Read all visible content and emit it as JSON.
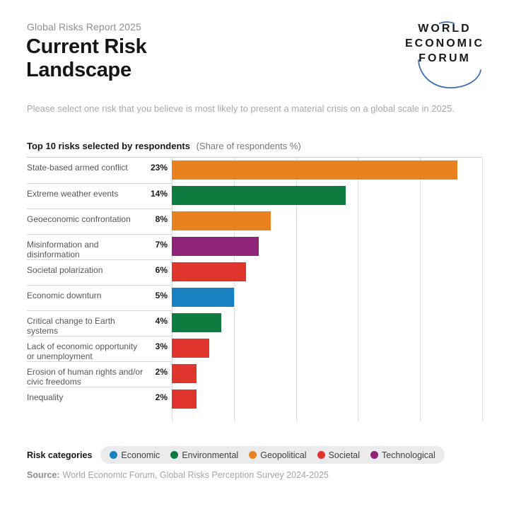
{
  "header": {
    "eyebrow": "Global Risks Report 2025",
    "title_line1": "Current Risk",
    "title_line2": "Landscape"
  },
  "logo": {
    "line1": "WORLD",
    "line2": "ECONOMIC",
    "line3": "FORUM",
    "arc_color": "#3e6fb6"
  },
  "question": "Please select one risk that you believe is most likely to present a material crisis on a global scale in 2025.",
  "chart_heading": {
    "title": "Top 10 risks selected by respondents",
    "note": "(Share of respondents %)"
  },
  "chart_data": {
    "type": "bar",
    "orientation": "horizontal",
    "title": "Top 10 risks selected by respondents",
    "value_unit": "Share of respondents %",
    "xlim": [
      0,
      25
    ],
    "gridline_step": 5,
    "grid": true,
    "legend_position": "bottom",
    "categories": [
      "State-based armed conflict",
      "Extreme weather events",
      "Geoeconomic confrontation",
      "Misinformation and disinformation",
      "Societal polarization",
      "Economic downturn",
      "Critical change to Earth systems",
      "Lack of economic opportunity or unemployment",
      "Erosion of human rights and/or civic freedoms",
      "Inequality"
    ],
    "values": [
      23,
      14,
      8,
      7,
      6,
      5,
      4,
      3,
      2,
      2
    ],
    "value_labels": [
      "23%",
      "14%",
      "8%",
      "7%",
      "6%",
      "5%",
      "4%",
      "3%",
      "2%",
      "2%"
    ],
    "risk_category_per_bar": [
      "Geopolitical",
      "Environmental",
      "Geopolitical",
      "Technological",
      "Societal",
      "Economic",
      "Environmental",
      "Societal",
      "Societal",
      "Societal"
    ],
    "category_colors": {
      "Economic": "#1781c1",
      "Environmental": "#0e7c3f",
      "Geopolitical": "#e8821e",
      "Societal": "#e0352c",
      "Technological": "#8e2377"
    }
  },
  "legend": {
    "label": "Risk categories",
    "items": [
      {
        "name": "Economic",
        "color": "#1781c1"
      },
      {
        "name": "Environmental",
        "color": "#0e7c3f"
      },
      {
        "name": "Geopolitical",
        "color": "#e8821e"
      },
      {
        "name": "Societal",
        "color": "#e0352c"
      },
      {
        "name": "Technological",
        "color": "#8e2377"
      }
    ]
  },
  "source": {
    "label": "Source:",
    "text": "World Economic Forum, Global Risks Perception Survey 2024-2025"
  }
}
